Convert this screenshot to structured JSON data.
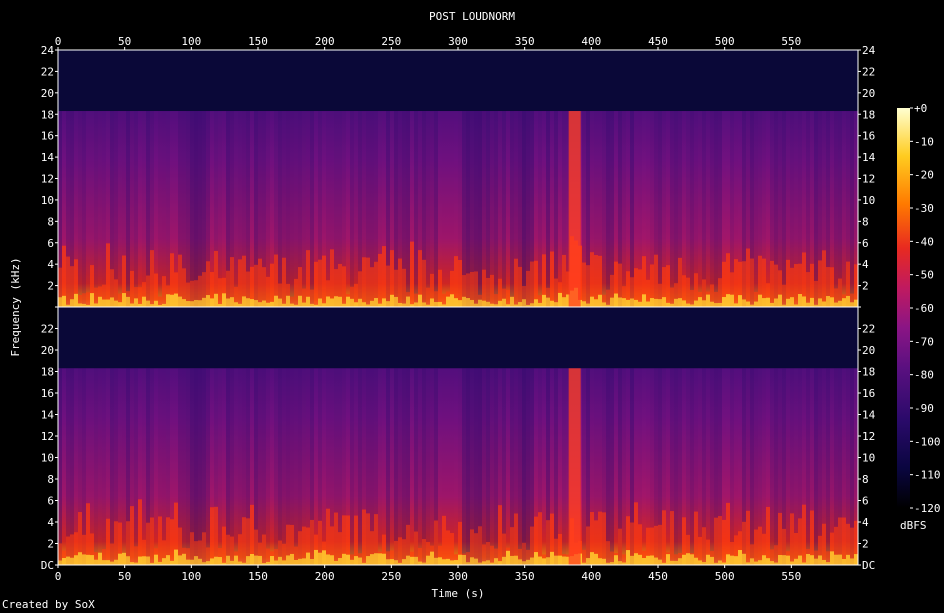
{
  "chart_data": {
    "type": "heatmap",
    "title": "POST LOUDNORM",
    "xlabel": "Time (s)",
    "ylabel": "Frequency (kHz)",
    "x_ticks": [
      "0",
      "50",
      "100",
      "150",
      "200",
      "250",
      "300",
      "350",
      "400",
      "450",
      "500",
      "550"
    ],
    "x_tick_values": [
      0,
      50,
      100,
      150,
      200,
      250,
      300,
      350,
      400,
      450,
      500,
      550
    ],
    "xlim": [
      0,
      600
    ],
    "y_ticks": [
      "DC",
      "2",
      "4",
      "6",
      "8",
      "10",
      "12",
      "14",
      "16",
      "18",
      "20",
      "22",
      "24"
    ],
    "y_tick_values": [
      0,
      2,
      4,
      6,
      8,
      10,
      12,
      14,
      16,
      18,
      20,
      22,
      24
    ],
    "ylim": [
      0,
      24
    ],
    "channels": 2,
    "content_cutoff_khz": 18.3,
    "colorbar": {
      "label": "dBFS",
      "ticks": [
        "+0",
        "-10",
        "-20",
        "-30",
        "-40",
        "-50",
        "-60",
        "-70",
        "-80",
        "-90",
        "-100",
        "-110",
        "-120"
      ],
      "tick_values": [
        0,
        -10,
        -20,
        -30,
        -40,
        -50,
        -60,
        -70,
        -80,
        -90,
        -100,
        -110,
        -120
      ],
      "range": [
        -120,
        0
      ],
      "colors": [
        "#000000",
        "#0a0640",
        "#2a0a6a",
        "#5a1080",
        "#8a1585",
        "#c01a60",
        "#e82a20",
        "#ff7a00",
        "#ffcc20",
        "#ffffd0"
      ]
    },
    "features": [
      {
        "name": "loud-band",
        "x_range": [
          383,
          392
        ],
        "note": "bright full-band column"
      },
      {
        "name": "quiet-region",
        "x_range": [
          95,
          110
        ]
      },
      {
        "name": "dotted-region",
        "x_range": [
          342,
          352
        ]
      }
    ]
  },
  "footer": "Created by SoX"
}
